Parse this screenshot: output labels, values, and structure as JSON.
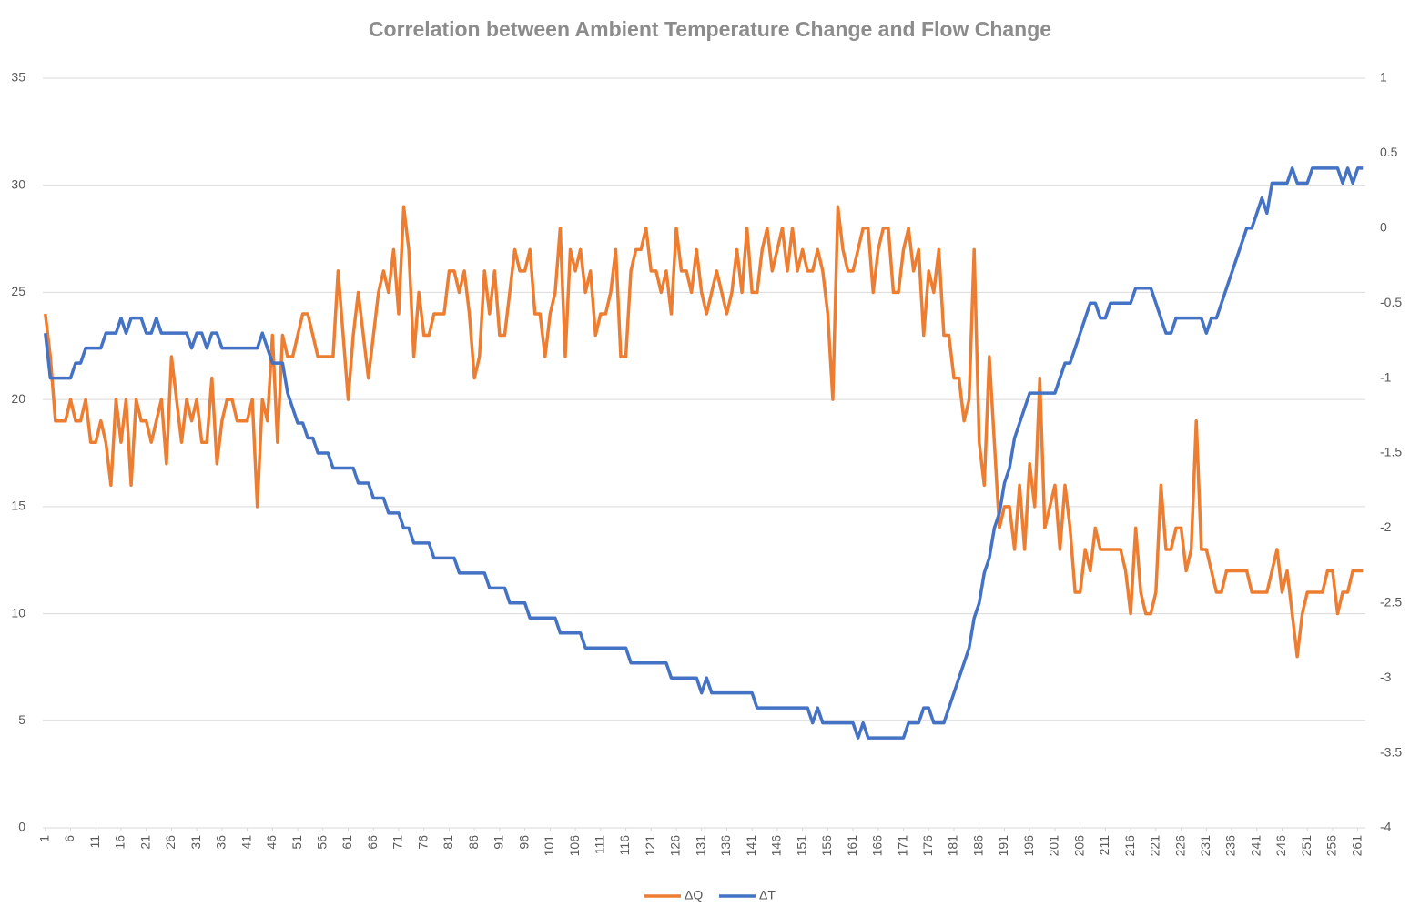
{
  "chart_data": {
    "type": "line",
    "title": "Correlation between Ambient Temperature Change and Flow Change",
    "x": [
      1,
      2,
      3,
      4,
      5,
      6,
      7,
      8,
      9,
      10,
      11,
      12,
      13,
      14,
      15,
      16,
      17,
      18,
      19,
      20,
      21,
      22,
      23,
      24,
      25,
      26,
      27,
      28,
      29,
      30,
      31,
      32,
      33,
      34,
      35,
      36,
      37,
      38,
      39,
      40,
      41,
      42,
      43,
      44,
      45,
      46,
      47,
      48,
      49,
      50,
      51,
      52,
      53,
      54,
      55,
      56,
      57,
      58,
      59,
      60,
      61,
      62,
      63,
      64,
      65,
      66,
      67,
      68,
      69,
      70,
      71,
      72,
      73,
      74,
      75,
      76,
      77,
      78,
      79,
      80,
      81,
      82,
      83,
      84,
      85,
      86,
      87,
      88,
      89,
      90,
      91,
      92,
      93,
      94,
      95,
      96,
      97,
      98,
      99,
      100,
      101,
      102,
      103,
      104,
      105,
      106,
      107,
      108,
      109,
      110,
      111,
      112,
      113,
      114,
      115,
      116,
      117,
      118,
      119,
      120,
      121,
      122,
      123,
      124,
      125,
      126,
      127,
      128,
      129,
      130,
      131,
      132,
      133,
      134,
      135,
      136,
      137,
      138,
      139,
      140,
      141,
      142,
      143,
      144,
      145,
      146,
      147,
      148,
      149,
      150,
      151,
      152,
      153,
      154,
      155,
      156,
      157,
      158,
      159,
      160,
      161,
      162,
      163,
      164,
      165,
      166,
      167,
      168,
      169,
      170,
      171,
      172,
      173,
      174,
      175,
      176,
      177,
      178,
      179,
      180,
      181,
      182,
      183,
      184,
      185,
      186,
      187,
      188,
      189,
      190,
      191,
      192,
      193,
      194,
      195,
      196,
      197,
      198,
      199,
      200,
      201,
      202,
      203,
      204,
      205,
      206,
      207,
      208,
      209,
      210,
      211,
      212,
      213,
      214,
      215,
      216,
      217,
      218,
      219,
      220,
      221,
      222,
      223,
      224,
      225,
      226,
      227,
      228,
      229,
      230,
      231,
      232,
      233,
      234,
      235,
      236,
      237,
      238,
      239,
      240,
      241,
      242,
      243,
      244,
      245,
      246,
      247,
      248,
      249,
      250,
      251,
      252,
      253,
      254,
      255,
      256,
      257,
      258,
      259,
      260,
      261,
      262
    ],
    "xlim": [
      0.5,
      262.5
    ],
    "xticks": [
      1,
      6,
      11,
      16,
      21,
      26,
      31,
      36,
      41,
      46,
      51,
      56,
      61,
      66,
      71,
      76,
      81,
      86,
      91,
      96,
      101,
      106,
      111,
      116,
      121,
      126,
      131,
      136,
      141,
      146,
      151,
      156,
      161,
      166,
      171,
      176,
      181,
      186,
      191,
      196,
      201,
      206,
      211,
      216,
      221,
      226,
      231,
      236,
      241,
      246,
      251,
      256,
      261
    ],
    "ylim": [
      0,
      35
    ],
    "yticks": [
      0,
      5,
      10,
      15,
      20,
      25,
      30,
      35
    ],
    "y2lim": [
      -4,
      1
    ],
    "y2ticks": [
      -4,
      -3.5,
      -3,
      -2.5,
      -2,
      -1.5,
      -1,
      -0.5,
      0,
      0.5,
      1
    ],
    "grid": true,
    "legend": "bottom",
    "series": [
      {
        "name": "ΔQ",
        "color": "#ed7d31",
        "axis": "y",
        "values": [
          24,
          22,
          19,
          19,
          19,
          20,
          19,
          19,
          20,
          18,
          18,
          19,
          18,
          16,
          20,
          18,
          20,
          16,
          20,
          19,
          19,
          18,
          19,
          20,
          17,
          22,
          20,
          18,
          20,
          19,
          20,
          18,
          18,
          21,
          17,
          19,
          20,
          20,
          19,
          19,
          19,
          20,
          15,
          20,
          19,
          23,
          18,
          23,
          22,
          22,
          23,
          24,
          24,
          23,
          22,
          22,
          22,
          22,
          26,
          23,
          20,
          23,
          25,
          23,
          21,
          23,
          25,
          26,
          25,
          27,
          24,
          29,
          27,
          22,
          25,
          23,
          23,
          24,
          24,
          24,
          26,
          26,
          25,
          26,
          24,
          21,
          22,
          26,
          24,
          26,
          23,
          23,
          25,
          27,
          26,
          26,
          27,
          24,
          24,
          22,
          24,
          25,
          28,
          22,
          27,
          26,
          27,
          25,
          26,
          23,
          24,
          24,
          25,
          27,
          22,
          22,
          26,
          27,
          27,
          28,
          26,
          26,
          25,
          26,
          24,
          28,
          26,
          26,
          25,
          27,
          25,
          24,
          25,
          26,
          25,
          24,
          25,
          27,
          25,
          28,
          25,
          25,
          27,
          28,
          26,
          27,
          28,
          26,
          28,
          26,
          27,
          26,
          26,
          27,
          26,
          24,
          20,
          29,
          27,
          26,
          26,
          27,
          28,
          28,
          25,
          27,
          28,
          28,
          25,
          25,
          27,
          28,
          26,
          27,
          23,
          26,
          25,
          27,
          23,
          23,
          21,
          21,
          19,
          20,
          27,
          18,
          16,
          22,
          18,
          14,
          15,
          15,
          13,
          16,
          13,
          17,
          15,
          21,
          14,
          15,
          16,
          13,
          16,
          14,
          11,
          11,
          13,
          12,
          14,
          13,
          13,
          13,
          13,
          13,
          12,
          10,
          14,
          11,
          10,
          10,
          11,
          16,
          13,
          13,
          14,
          14,
          12,
          13,
          19,
          13,
          13,
          12,
          11,
          11,
          12,
          12,
          12,
          12,
          12,
          11,
          11,
          11,
          11,
          12,
          13,
          11,
          12,
          10,
          8,
          10,
          11,
          11,
          11,
          11,
          12,
          12,
          10,
          11,
          11,
          12,
          12,
          12
        ]
      },
      {
        "name": "ΔT",
        "color": "#4472c4",
        "axis": "y2",
        "values": [
          -0.7,
          -1,
          -1,
          -1,
          -1,
          -1,
          -0.9,
          -0.9,
          -0.8,
          -0.8,
          -0.8,
          -0.8,
          -0.7,
          -0.7,
          -0.7,
          -0.6,
          -0.7,
          -0.6,
          -0.6,
          -0.6,
          -0.7,
          -0.7,
          -0.6,
          -0.7,
          -0.7,
          -0.7,
          -0.7,
          -0.7,
          -0.7,
          -0.8,
          -0.7,
          -0.7,
          -0.8,
          -0.7,
          -0.7,
          -0.8,
          -0.8,
          -0.8,
          -0.8,
          -0.8,
          -0.8,
          -0.8,
          -0.8,
          -0.7,
          -0.8,
          -0.9,
          -0.9,
          -0.9,
          -1.1,
          -1.2,
          -1.3,
          -1.3,
          -1.4,
          -1.4,
          -1.5,
          -1.5,
          -1.5,
          -1.6,
          -1.6,
          -1.6,
          -1.6,
          -1.6,
          -1.7,
          -1.7,
          -1.7,
          -1.8,
          -1.8,
          -1.8,
          -1.9,
          -1.9,
          -1.9,
          -2,
          -2,
          -2.1,
          -2.1,
          -2.1,
          -2.1,
          -2.2,
          -2.2,
          -2.2,
          -2.2,
          -2.2,
          -2.3,
          -2.3,
          -2.3,
          -2.3,
          -2.3,
          -2.3,
          -2.4,
          -2.4,
          -2.4,
          -2.4,
          -2.5,
          -2.5,
          -2.5,
          -2.5,
          -2.6,
          -2.6,
          -2.6,
          -2.6,
          -2.6,
          -2.6,
          -2.7,
          -2.7,
          -2.7,
          -2.7,
          -2.7,
          -2.8,
          -2.8,
          -2.8,
          -2.8,
          -2.8,
          -2.8,
          -2.8,
          -2.8,
          -2.8,
          -2.9,
          -2.9,
          -2.9,
          -2.9,
          -2.9,
          -2.9,
          -2.9,
          -2.9,
          -3,
          -3,
          -3,
          -3,
          -3,
          -3,
          -3.1,
          -3,
          -3.1,
          -3.1,
          -3.1,
          -3.1,
          -3.1,
          -3.1,
          -3.1,
          -3.1,
          -3.1,
          -3.2,
          -3.2,
          -3.2,
          -3.2,
          -3.2,
          -3.2,
          -3.2,
          -3.2,
          -3.2,
          -3.2,
          -3.2,
          -3.3,
          -3.2,
          -3.3,
          -3.3,
          -3.3,
          -3.3,
          -3.3,
          -3.3,
          -3.3,
          -3.4,
          -3.3,
          -3.4,
          -3.4,
          -3.4,
          -3.4,
          -3.4,
          -3.4,
          -3.4,
          -3.4,
          -3.3,
          -3.3,
          -3.3,
          -3.2,
          -3.2,
          -3.3,
          -3.3,
          -3.3,
          -3.2,
          -3.1,
          -3,
          -2.9,
          -2.8,
          -2.6,
          -2.5,
          -2.3,
          -2.2,
          -2,
          -1.9,
          -1.7,
          -1.6,
          -1.4,
          -1.3,
          -1.2,
          -1.1,
          -1.1,
          -1.1,
          -1.1,
          -1.1,
          -1.1,
          -1,
          -0.9,
          -0.9,
          -0.8,
          -0.7,
          -0.6,
          -0.5,
          -0.5,
          -0.6,
          -0.6,
          -0.5,
          -0.5,
          -0.5,
          -0.5,
          -0.5,
          -0.4,
          -0.4,
          -0.4,
          -0.4,
          -0.5,
          -0.6,
          -0.7,
          -0.7,
          -0.6,
          -0.6,
          -0.6,
          -0.6,
          -0.6,
          -0.6,
          -0.7,
          -0.6,
          -0.6,
          -0.5,
          -0.4,
          -0.3,
          -0.2,
          -0.1,
          0,
          0,
          0.1,
          0.2,
          0.1,
          0.3,
          0.3,
          0.3,
          0.3,
          0.4,
          0.3,
          0.3,
          0.3,
          0.4,
          0.4,
          0.4,
          0.4,
          0.4,
          0.4,
          0.3,
          0.4,
          0.3,
          0.4,
          0.4
        ]
      }
    ]
  }
}
